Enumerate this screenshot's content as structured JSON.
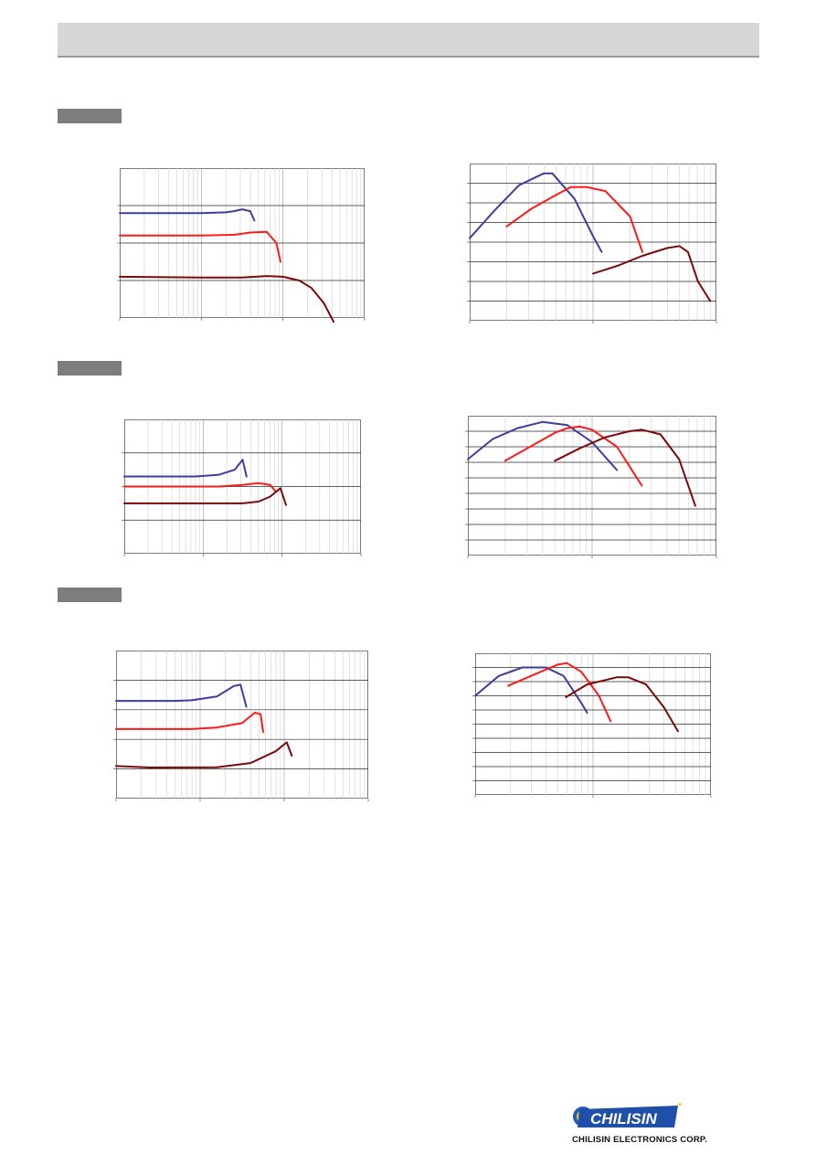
{
  "colors": {
    "blue": "#3c3f9c",
    "red": "#ff1a1a",
    "maroon": "#7a0a0a",
    "tag": "#7d7d7d",
    "header": "#d6d6d6"
  },
  "brand": {
    "wordmark": "CHILISIN",
    "company": "CHILISIN ELECTRONICS CORP.",
    "logo_icon": "chilisin-logo-icon"
  },
  "chart_data": [
    {
      "type": "line",
      "id": "section1-left",
      "x_scale": "log",
      "xlim": [
        0,
        3
      ],
      "ylim": [
        0,
        4
      ],
      "grid": true,
      "series": [
        {
          "x": [
            0,
            1,
            1.3,
            1.4,
            1.5,
            1.6,
            1.65
          ],
          "y": [
            2.8,
            2.8,
            2.82,
            2.85,
            2.9,
            2.85,
            2.6
          ]
        },
        {
          "x": [
            0,
            1,
            1.4,
            1.6,
            1.8,
            1.92,
            1.97
          ],
          "y": [
            2.2,
            2.2,
            2.22,
            2.28,
            2.3,
            2.0,
            1.5
          ]
        },
        {
          "x": [
            0,
            1,
            1.5,
            1.8,
            2.0,
            2.2,
            2.35,
            2.5,
            2.62
          ],
          "y": [
            1.1,
            1.08,
            1.08,
            1.12,
            1.1,
            1.0,
            0.8,
            0.4,
            -0.1
          ]
        }
      ]
    },
    {
      "type": "line",
      "id": "section1-right",
      "x_scale": "log",
      "xlim": [
        0,
        2
      ],
      "ylim": [
        0,
        8
      ],
      "grid": true,
      "series": [
        {
          "x": [
            0,
            0.2,
            0.4,
            0.6,
            0.67,
            0.85,
            1.0,
            1.07
          ],
          "y": [
            4.2,
            5.6,
            6.9,
            7.5,
            7.5,
            6.2,
            4.3,
            3.5
          ]
        },
        {
          "x": [
            0.3,
            0.5,
            0.7,
            0.82,
            0.95,
            1.1,
            1.3,
            1.4
          ],
          "y": [
            4.8,
            5.7,
            6.4,
            6.8,
            6.8,
            6.6,
            5.3,
            3.5
          ]
        },
        {
          "x": [
            1.0,
            1.2,
            1.4,
            1.6,
            1.7,
            1.77,
            1.85,
            1.95
          ],
          "y": [
            2.4,
            2.8,
            3.3,
            3.7,
            3.8,
            3.5,
            2.0,
            1.0
          ]
        }
      ]
    },
    {
      "type": "line",
      "id": "section2-left",
      "x_scale": "log",
      "xlim": [
        0,
        3
      ],
      "ylim": [
        0,
        4
      ],
      "grid": true,
      "series": [
        {
          "x": [
            0,
            0.9,
            1.2,
            1.4,
            1.5,
            1.55
          ],
          "y": [
            2.3,
            2.3,
            2.35,
            2.5,
            2.8,
            2.3
          ]
        },
        {
          "x": [
            0,
            1.2,
            1.5,
            1.7,
            1.85,
            1.92
          ],
          "y": [
            2.0,
            2.0,
            2.05,
            2.1,
            2.05,
            1.85
          ]
        },
        {
          "x": [
            0,
            1.5,
            1.7,
            1.85,
            1.98,
            2.05
          ],
          "y": [
            1.5,
            1.5,
            1.55,
            1.7,
            1.95,
            1.45
          ]
        }
      ]
    },
    {
      "type": "line",
      "id": "section2-right",
      "x_scale": "log",
      "xlim": [
        0,
        2
      ],
      "ylim": [
        0,
        9
      ],
      "grid": true,
      "series": [
        {
          "x": [
            0,
            0.2,
            0.4,
            0.6,
            0.8,
            1.0,
            1.2
          ],
          "y": [
            6.2,
            7.5,
            8.2,
            8.6,
            8.4,
            7.3,
            5.5
          ]
        },
        {
          "x": [
            0.3,
            0.5,
            0.7,
            0.8,
            0.9,
            1.0,
            1.2,
            1.4
          ],
          "y": [
            6.1,
            7.0,
            7.9,
            8.2,
            8.3,
            8.1,
            7.0,
            4.5
          ]
        },
        {
          "x": [
            0.7,
            0.9,
            1.1,
            1.3,
            1.4,
            1.55,
            1.7,
            1.83
          ],
          "y": [
            6.1,
            6.9,
            7.6,
            8.0,
            8.1,
            7.8,
            6.2,
            3.2
          ]
        }
      ]
    },
    {
      "type": "line",
      "id": "section3-left",
      "x_scale": "log",
      "xlim": [
        0,
        3
      ],
      "ylim": [
        0,
        5
      ],
      "grid": true,
      "series": [
        {
          "x": [
            0,
            0.7,
            0.9,
            1.2,
            1.4,
            1.48,
            1.55
          ],
          "y": [
            3.3,
            3.3,
            3.32,
            3.45,
            3.8,
            3.85,
            3.1
          ]
        },
        {
          "x": [
            0,
            0.9,
            1.2,
            1.5,
            1.65,
            1.72,
            1.75
          ],
          "y": [
            2.35,
            2.35,
            2.4,
            2.55,
            2.9,
            2.85,
            2.25
          ]
        },
        {
          "x": [
            0,
            0.4,
            1.2,
            1.6,
            1.9,
            2.03,
            2.09
          ],
          "y": [
            1.1,
            1.05,
            1.06,
            1.2,
            1.6,
            1.9,
            1.45
          ]
        }
      ]
    },
    {
      "type": "line",
      "id": "section3-right",
      "x_scale": "log",
      "xlim": [
        0,
        2
      ],
      "ylim": [
        0,
        10
      ],
      "grid": true,
      "series": [
        {
          "x": [
            0,
            0.2,
            0.4,
            0.6,
            0.75,
            0.9,
            0.95
          ],
          "y": [
            7.0,
            8.4,
            9.0,
            9.0,
            8.4,
            6.5,
            5.8
          ]
        },
        {
          "x": [
            0.28,
            0.5,
            0.7,
            0.78,
            0.9,
            1.05,
            1.15
          ],
          "y": [
            7.7,
            8.5,
            9.2,
            9.3,
            8.7,
            7.0,
            5.2
          ]
        },
        {
          "x": [
            0.77,
            0.95,
            1.2,
            1.3,
            1.45,
            1.6,
            1.72
          ],
          "y": [
            6.9,
            7.8,
            8.3,
            8.3,
            7.8,
            6.2,
            4.5
          ]
        }
      ]
    }
  ]
}
